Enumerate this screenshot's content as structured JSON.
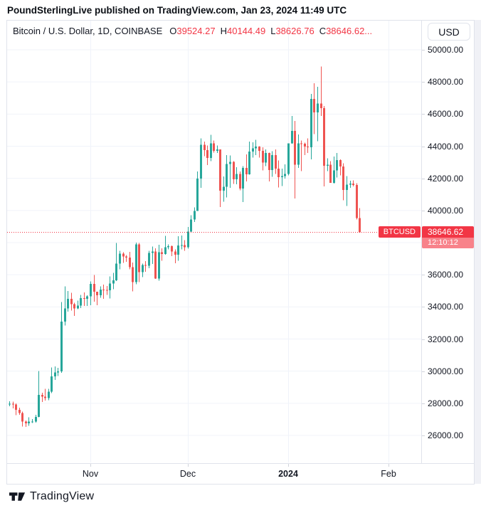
{
  "attribution": "PoundSterlingLive published on TradingView.com, Jan 23, 2024 11:49 UTC",
  "legend": {
    "symbol": "Bitcoin / U.S. Dollar, 1D, COINBASE",
    "o_label": "O",
    "o_value": "39524.27",
    "h_label": "H",
    "h_value": "40144.49",
    "l_label": "L",
    "l_value": "38626.76",
    "c_label": "C",
    "c_value": "38646.62..."
  },
  "currency_button_label": "USD",
  "last_price_display": {
    "symbol": "BTCUSD",
    "value": "38646.62",
    "countdown": "12:10:12"
  },
  "footer": {
    "brand": "TradingView"
  },
  "colors": {
    "up": "#26a69a",
    "down": "#ef5350",
    "accent_red": "#f23645",
    "grid": "#f0f3fa",
    "border": "#e0e3eb",
    "text": "#131722",
    "tick": "#d1d4dc"
  },
  "chart_data": {
    "type": "candlestick",
    "title": "Bitcoin / U.S. Dollar",
    "interval": "1D",
    "exchange": "COINBASE",
    "last_price": 38646.62,
    "y_axis": {
      "ticks": [
        50000,
        48000,
        46000,
        44000,
        42000,
        40000,
        38000,
        36000,
        34000,
        32000,
        30000,
        28000,
        26000
      ],
      "labeled_ticks": [
        "50000.00",
        "48000.00",
        "46000.00",
        "44000.00",
        "42000.00",
        "40000.00",
        "36000.00",
        "34000.00",
        "32000.00",
        "30000.00",
        "28000.00",
        "26000.00"
      ],
      "range_shown": [
        24900,
        50600
      ]
    },
    "x_axis": {
      "start_date": "2023-10-07",
      "end_date": "2024-01-23",
      "labels": [
        {
          "text": "Nov",
          "date": "2023-11-01",
          "bold": false
        },
        {
          "text": "Dec",
          "date": "2023-12-01",
          "bold": false
        },
        {
          "text": "2024",
          "date": "2024-01-01",
          "bold": true
        },
        {
          "text": "Feb",
          "date": "2024-02-01",
          "bold": false
        }
      ]
    },
    "candle_format": [
      "date",
      "open",
      "high",
      "low",
      "close"
    ],
    "candles": [
      [
        "2023-10-07",
        27950,
        28120,
        27820,
        27970
      ],
      [
        "2023-10-08",
        27970,
        28100,
        27680,
        27920
      ],
      [
        "2023-10-09",
        27920,
        27990,
        27260,
        27590
      ],
      [
        "2023-10-10",
        27590,
        27730,
        27290,
        27390
      ],
      [
        "2023-10-11",
        27390,
        27480,
        26550,
        26870
      ],
      [
        "2023-10-12",
        26870,
        26940,
        26540,
        26750
      ],
      [
        "2023-10-13",
        26750,
        27120,
        26600,
        26860
      ],
      [
        "2023-10-14",
        26860,
        27010,
        26770,
        26860
      ],
      [
        "2023-10-15",
        26860,
        27290,
        26800,
        27160
      ],
      [
        "2023-10-16",
        27160,
        30000,
        27120,
        28520
      ],
      [
        "2023-10-17",
        28520,
        28650,
        28080,
        28410
      ],
      [
        "2023-10-18",
        28410,
        28900,
        28170,
        28330
      ],
      [
        "2023-10-19",
        28330,
        28910,
        28200,
        28720
      ],
      [
        "2023-10-20",
        28720,
        30220,
        28640,
        29680
      ],
      [
        "2023-10-21",
        29680,
        30290,
        29460,
        29920
      ],
      [
        "2023-10-22",
        29920,
        30200,
        29690,
        29990
      ],
      [
        "2023-10-23",
        29990,
        34300,
        29900,
        33080
      ],
      [
        "2023-10-24",
        33080,
        35280,
        32850,
        33900
      ],
      [
        "2023-10-25",
        33900,
        35000,
        33700,
        34500
      ],
      [
        "2023-10-26",
        34500,
        34870,
        33780,
        34160
      ],
      [
        "2023-10-27",
        34160,
        34250,
        33430,
        33910
      ],
      [
        "2023-10-28",
        33910,
        34400,
        33860,
        34090
      ],
      [
        "2023-10-29",
        34090,
        34750,
        33930,
        34540
      ],
      [
        "2023-10-30",
        34540,
        34900,
        34060,
        34500
      ],
      [
        "2023-10-31",
        34500,
        34720,
        34050,
        34650
      ],
      [
        "2023-11-01",
        34650,
        35590,
        34100,
        35440
      ],
      [
        "2023-11-02",
        35440,
        35990,
        34330,
        34940
      ],
      [
        "2023-11-03",
        34940,
        34950,
        34110,
        34730
      ],
      [
        "2023-11-04",
        34730,
        35280,
        34560,
        35080
      ],
      [
        "2023-11-05",
        35080,
        35380,
        34500,
        35050
      ],
      [
        "2023-11-06",
        35050,
        35300,
        34740,
        35040
      ],
      [
        "2023-11-07",
        35040,
        35900,
        34530,
        35450
      ],
      [
        "2023-11-08",
        35450,
        36120,
        35100,
        35650
      ],
      [
        "2023-11-09",
        35650,
        37980,
        35600,
        36700
      ],
      [
        "2023-11-10",
        36700,
        37500,
        36340,
        37310
      ],
      [
        "2023-11-11",
        37310,
        37410,
        36730,
        37130
      ],
      [
        "2023-11-12",
        37130,
        37230,
        36810,
        37070
      ],
      [
        "2023-11-13",
        37070,
        37420,
        36350,
        36480
      ],
      [
        "2023-11-14",
        36480,
        36750,
        34960,
        35550
      ],
      [
        "2023-11-15",
        35550,
        38000,
        35400,
        37880
      ],
      [
        "2023-11-16",
        37880,
        37980,
        35550,
        36160
      ],
      [
        "2023-11-17",
        36160,
        36700,
        35860,
        36610
      ],
      [
        "2023-11-18",
        36610,
        36840,
        36190,
        36570
      ],
      [
        "2023-11-19",
        36570,
        37500,
        36400,
        37360
      ],
      [
        "2023-11-20",
        37360,
        37750,
        36680,
        37450
      ],
      [
        "2023-11-21",
        37450,
        37650,
        35750,
        35760
      ],
      [
        "2023-11-22",
        35760,
        37860,
        35630,
        37410
      ],
      [
        "2023-11-23",
        37410,
        37650,
        36870,
        37290
      ],
      [
        "2023-11-24",
        37290,
        38420,
        37250,
        37720
      ],
      [
        "2023-11-25",
        37720,
        37890,
        37590,
        37780
      ],
      [
        "2023-11-26",
        37780,
        37820,
        37150,
        37440
      ],
      [
        "2023-11-27",
        37440,
        37590,
        36710,
        37240
      ],
      [
        "2023-11-28",
        37240,
        38390,
        36870,
        37820
      ],
      [
        "2023-11-29",
        37820,
        38440,
        37570,
        37850
      ],
      [
        "2023-11-30",
        37850,
        38150,
        37500,
        37710
      ],
      [
        "2023-12-01",
        37710,
        38970,
        37620,
        38680
      ],
      [
        "2023-12-02",
        38680,
        39700,
        38640,
        39450
      ],
      [
        "2023-12-03",
        39450,
        40200,
        39290,
        39970
      ],
      [
        "2023-12-04",
        39970,
        42420,
        39970,
        41990
      ],
      [
        "2023-12-05",
        41990,
        44480,
        41420,
        44080
      ],
      [
        "2023-12-06",
        44080,
        44280,
        43390,
        43760
      ],
      [
        "2023-12-07",
        43760,
        44050,
        42830,
        43270
      ],
      [
        "2023-12-08",
        43270,
        44700,
        43080,
        44170
      ],
      [
        "2023-12-09",
        44170,
        44360,
        43600,
        43720
      ],
      [
        "2023-12-10",
        43720,
        44050,
        43580,
        43790
      ],
      [
        "2023-12-11",
        43790,
        43810,
        40220,
        41240
      ],
      [
        "2023-12-12",
        41240,
        42120,
        40550,
        41480
      ],
      [
        "2023-12-13",
        41480,
        43450,
        40810,
        42890
      ],
      [
        "2023-12-14",
        42890,
        43420,
        41410,
        43020
      ],
      [
        "2023-12-15",
        43020,
        43080,
        41660,
        41940
      ],
      [
        "2023-12-16",
        41940,
        42700,
        41640,
        42280
      ],
      [
        "2023-12-17",
        42280,
        42420,
        41260,
        41370
      ],
      [
        "2023-12-18",
        41370,
        42750,
        40530,
        42660
      ],
      [
        "2023-12-19",
        42660,
        43500,
        41810,
        42260
      ],
      [
        "2023-12-20",
        42260,
        44280,
        42230,
        43670
      ],
      [
        "2023-12-21",
        43670,
        44240,
        43290,
        43870
      ],
      [
        "2023-12-22",
        43870,
        44400,
        43440,
        43970
      ],
      [
        "2023-12-23",
        43970,
        44000,
        43290,
        43710
      ],
      [
        "2023-12-24",
        43710,
        43940,
        42500,
        42990
      ],
      [
        "2023-12-25",
        42990,
        43800,
        42750,
        43580
      ],
      [
        "2023-12-26",
        43580,
        43600,
        41810,
        42520
      ],
      [
        "2023-12-27",
        42520,
        43680,
        42100,
        43450
      ],
      [
        "2023-12-28",
        43450,
        43800,
        42280,
        42600
      ],
      [
        "2023-12-29",
        42600,
        43110,
        41430,
        42070
      ],
      [
        "2023-12-30",
        42070,
        42600,
        41520,
        42140
      ],
      [
        "2023-12-31",
        42140,
        42860,
        41980,
        42280
      ],
      [
        "2024-01-01",
        42280,
        44180,
        42190,
        44180
      ],
      [
        "2024-01-02",
        44180,
        45880,
        44150,
        44960
      ],
      [
        "2024-01-03",
        44960,
        45580,
        40740,
        42850
      ],
      [
        "2024-01-04",
        42850,
        44730,
        42640,
        44180
      ],
      [
        "2024-01-05",
        44180,
        44360,
        42450,
        44160
      ],
      [
        "2024-01-06",
        44160,
        44230,
        43440,
        43970
      ],
      [
        "2024-01-07",
        43970,
        44480,
        43590,
        43940
      ],
      [
        "2024-01-08",
        43940,
        47250,
        43180,
        46950
      ],
      [
        "2024-01-09",
        46950,
        47920,
        44750,
        46110
      ],
      [
        "2024-01-10",
        46110,
        47690,
        44300,
        46650
      ],
      [
        "2024-01-11",
        46650,
        48970,
        45890,
        46360
      ],
      [
        "2024-01-12",
        46360,
        46510,
        41500,
        42780
      ],
      [
        "2024-01-13",
        42780,
        43250,
        42440,
        42840
      ],
      [
        "2024-01-14",
        42840,
        43070,
        41720,
        41730
      ],
      [
        "2024-01-15",
        41730,
        43350,
        41680,
        42500
      ],
      [
        "2024-01-16",
        42500,
        43570,
        42050,
        43130
      ],
      [
        "2024-01-17",
        43130,
        43180,
        42180,
        42740
      ],
      [
        "2024-01-18",
        42740,
        42930,
        40630,
        41270
      ],
      [
        "2024-01-19",
        41270,
        42150,
        40280,
        41610
      ],
      [
        "2024-01-20",
        41610,
        41850,
        41420,
        41680
      ],
      [
        "2024-01-21",
        41680,
        41880,
        41500,
        41580
      ],
      [
        "2024-01-22",
        41580,
        41690,
        39430,
        39524.27
      ],
      [
        "2024-01-23",
        39524.27,
        40144.49,
        38626.76,
        38646.62
      ]
    ]
  }
}
